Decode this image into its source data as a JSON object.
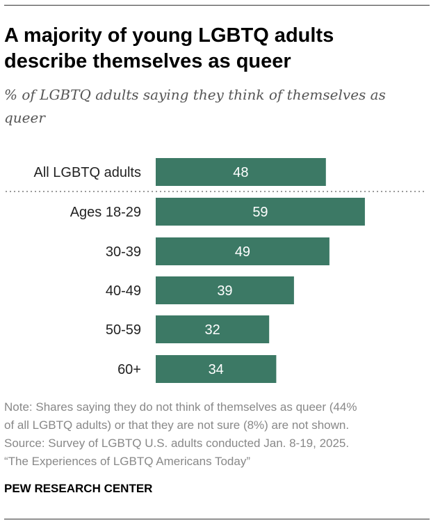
{
  "title": "A majority of young LGBTQ adults describe themselves as queer",
  "subtitle": "% of LGBTQ adults saying they think of themselves as queer",
  "note_lines": [
    "Note: Shares saying they do not think of themselves as queer (44%",
    "of all LGBTQ adults) or that they are not sure (8%) are not shown.",
    "Source: Survey of LGBTQ U.S. adults conducted Jan. 8-19, 2025.",
    "“The Experiences of LGBTQ Americans Today”"
  ],
  "branding": "PEW RESEARCH CENTER",
  "colors": {
    "bar": "#3c7965",
    "divider": "#999999"
  },
  "chart_data": {
    "type": "bar",
    "orientation": "horizontal",
    "categories": [
      "All LGBTQ adults",
      "Ages 18-29",
      "30-39",
      "40-49",
      "50-59",
      "60+"
    ],
    "values": [
      48,
      59,
      49,
      39,
      32,
      34
    ],
    "data_labels": [
      "48",
      "59",
      "49",
      "39",
      "32",
      "34"
    ],
    "xlim": [
      0,
      100
    ],
    "grid": false,
    "legend": "none",
    "divider_after_category": "All LGBTQ adults"
  }
}
